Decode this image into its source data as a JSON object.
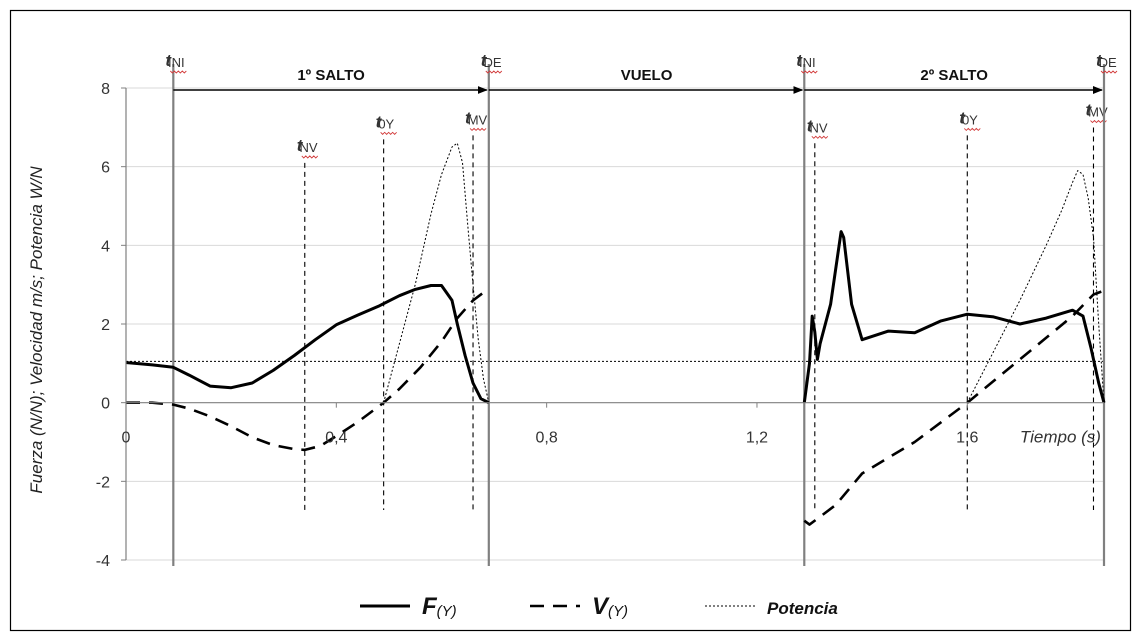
{
  "chart_data": {
    "type": "line",
    "title": "",
    "xlabel": "Tiempo (s)",
    "ylabel": "Fuerza (N/N); Velocidad m/s; Potencia W/N",
    "xlim": [
      0,
      1.86
    ],
    "ylim": [
      -4,
      8
    ],
    "x_ticks": [
      {
        "value": 0,
        "label": "0"
      },
      {
        "value": 0.4,
        "label": "0,4"
      },
      {
        "value": 0.8,
        "label": "0,8"
      },
      {
        "value": 1.2,
        "label": "1,2"
      },
      {
        "value": 1.6,
        "label": "1,6"
      }
    ],
    "y_ticks": [
      {
        "value": 8,
        "label": "8"
      },
      {
        "value": 6,
        "label": "6"
      },
      {
        "value": 4,
        "label": "4"
      },
      {
        "value": 2,
        "label": "2"
      },
      {
        "value": 0,
        "label": "0"
      },
      {
        "value": -2,
        "label": "-2"
      },
      {
        "value": -4,
        "label": "-4"
      }
    ],
    "legend_position": "bottom",
    "legend": [
      {
        "label_main": "F",
        "label_sub": "(Y)",
        "style": "solid"
      },
      {
        "label_main": "V",
        "label_sub": "(Y)",
        "style": "dashed"
      },
      {
        "label_main": "Potencia",
        "label_sub": "",
        "style": "dotted"
      }
    ],
    "phases": [
      {
        "label": "1º SALTO",
        "x_start": 0.09,
        "x_end": 0.69
      },
      {
        "label": "VUELO",
        "x_start": 0.69,
        "x_end": 1.29
      },
      {
        "label": "2º SALTO",
        "x_start": 1.29,
        "x_end": 1.86
      }
    ],
    "events": [
      {
        "main": "t",
        "sub": "INI",
        "x": 0.09,
        "label_y": 8.8,
        "line": "solid"
      },
      {
        "main": "t",
        "sub": "NV",
        "x": 0.34,
        "label_y": 6.4,
        "line": "dashed"
      },
      {
        "main": "t",
        "sub": "0Y",
        "x": 0.49,
        "label_y": 7.0,
        "line": "dashed"
      },
      {
        "main": "t",
        "sub": "MV",
        "x": 0.66,
        "label_y": 7.1,
        "line": "dashed"
      },
      {
        "main": "t",
        "sub": "DE",
        "x": 0.69,
        "label_y": 8.8,
        "line": "solid"
      },
      {
        "main": "t",
        "sub": "INI",
        "x": 1.29,
        "label_y": 8.8,
        "line": "solid"
      },
      {
        "main": "t",
        "sub": "NV",
        "x": 1.31,
        "label_y": 6.9,
        "line": "dashed"
      },
      {
        "main": "t",
        "sub": "0Y",
        "x": 1.6,
        "label_y": 7.1,
        "line": "dashed"
      },
      {
        "main": "t",
        "sub": "MV",
        "x": 1.84,
        "label_y": 7.3,
        "line": "dashed"
      },
      {
        "main": "t",
        "sub": "DE",
        "x": 1.86,
        "label_y": 8.8,
        "line": "solid"
      }
    ],
    "body_weight_reference": 1.05,
    "series": [
      {
        "key": "force",
        "style": "solid",
        "x": [
          0,
          0.05,
          0.09,
          0.12,
          0.16,
          0.2,
          0.24,
          0.28,
          0.32,
          0.36,
          0.4,
          0.44,
          0.48,
          0.52,
          0.55,
          0.58,
          0.6,
          0.62,
          0.63,
          0.645,
          0.66,
          0.675,
          0.69,
          null,
          1.29,
          1.3,
          1.305,
          1.31,
          1.315,
          1.32,
          1.34,
          1.36,
          1.365,
          1.38,
          1.4,
          1.45,
          1.5,
          1.55,
          1.6,
          1.65,
          1.7,
          1.75,
          1.8,
          1.82,
          1.835,
          1.85,
          1.86
        ],
        "y": [
          1.02,
          0.96,
          0.9,
          0.7,
          0.42,
          0.38,
          0.5,
          0.82,
          1.2,
          1.6,
          1.98,
          2.22,
          2.45,
          2.72,
          2.88,
          2.98,
          2.98,
          2.6,
          2.0,
          1.2,
          0.5,
          0.1,
          0,
          null,
          0,
          1.0,
          2.2,
          1.8,
          1.1,
          1.5,
          2.5,
          4.35,
          4.2,
          2.5,
          1.6,
          1.82,
          1.78,
          2.08,
          2.25,
          2.18,
          2.0,
          2.15,
          2.35,
          2.2,
          1.4,
          0.5,
          0
        ]
      },
      {
        "key": "velocity",
        "style": "dashed",
        "x": [
          0,
          0.05,
          0.09,
          0.12,
          0.16,
          0.2,
          0.24,
          0.28,
          0.32,
          0.34,
          0.37,
          0.4,
          0.44,
          0.49,
          0.52,
          0.56,
          0.6,
          0.63,
          0.66,
          0.68,
          0.69,
          null,
          1.29,
          1.3,
          1.32,
          1.35,
          1.4,
          1.45,
          1.5,
          1.55,
          1.6,
          1.65,
          1.7,
          1.75,
          1.8,
          1.84,
          1.86
        ],
        "y": [
          0,
          0,
          -0.05,
          -0.15,
          -0.35,
          -0.6,
          -0.88,
          -1.08,
          -1.18,
          -1.2,
          -1.1,
          -0.85,
          -0.5,
          0,
          0.35,
          0.9,
          1.55,
          2.15,
          2.6,
          2.8,
          2.75,
          null,
          -3.0,
          -3.1,
          -2.9,
          -2.6,
          -1.8,
          -1.4,
          -1.0,
          -0.5,
          0,
          0.55,
          1.1,
          1.65,
          2.2,
          2.75,
          2.85
        ]
      },
      {
        "key": "power",
        "style": "dotted",
        "x": [
          0.49,
          0.52,
          0.55,
          0.58,
          0.6,
          0.62,
          0.63,
          0.64,
          0.65,
          0.66,
          0.67,
          0.68,
          0.69,
          null,
          1.6,
          1.65,
          1.7,
          1.75,
          1.78,
          1.8,
          1.81,
          1.82,
          1.83,
          1.84,
          1.85,
          1.86
        ],
        "y": [
          0,
          1.5,
          3.0,
          4.8,
          5.8,
          6.5,
          6.6,
          6.1,
          4.5,
          3.0,
          1.6,
          0.6,
          0,
          null,
          0,
          1.3,
          2.6,
          4.0,
          4.9,
          5.6,
          5.9,
          5.8,
          5.2,
          4.2,
          2.0,
          0
        ]
      }
    ]
  }
}
